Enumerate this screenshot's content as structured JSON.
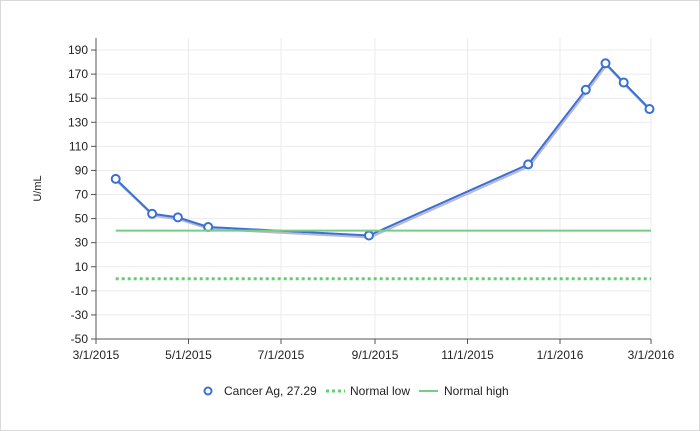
{
  "chart_data": {
    "type": "line",
    "ylabel": "U/mL",
    "xlabel": "",
    "ylim": [
      -50,
      200
    ],
    "yticks": [
      190,
      170,
      150,
      130,
      110,
      90,
      70,
      50,
      30,
      10,
      -10,
      -30,
      -50
    ],
    "xticks": [
      {
        "date": "2015-03-01",
        "label": "3/1/2015"
      },
      {
        "date": "2015-05-01",
        "label": "5/1/2015"
      },
      {
        "date": "2015-07-01",
        "label": "7/1/2015"
      },
      {
        "date": "2015-09-01",
        "label": "9/1/2015"
      },
      {
        "date": "2015-11-01",
        "label": "11/1/2015"
      },
      {
        "date": "2016-01-01",
        "label": "1/1/2016"
      },
      {
        "date": "2016-03-01",
        "label": "3/1/2016"
      }
    ],
    "xlim": [
      "2015-03-01",
      "2016-03-01"
    ],
    "grid": true,
    "legend_position": "bottom",
    "series": [
      {
        "name": "Cancer Ag, 27.29",
        "style": "line-markers",
        "color": "#3a6fd8",
        "points": [
          {
            "x": "2015-03-14",
            "y": 83
          },
          {
            "x": "2015-04-07",
            "y": 54
          },
          {
            "x": "2015-04-24",
            "y": 51
          },
          {
            "x": "2015-05-14",
            "y": 43
          },
          {
            "x": "2015-08-28",
            "y": 36
          },
          {
            "x": "2015-12-11",
            "y": 95
          },
          {
            "x": "2016-01-18",
            "y": 157
          },
          {
            "x": "2016-01-31",
            "y": 179
          },
          {
            "x": "2016-02-12",
            "y": 163
          },
          {
            "x": "2016-02-29",
            "y": 141
          }
        ]
      },
      {
        "name": "Normal low",
        "style": "dotted",
        "color": "#66cc77",
        "points": [
          {
            "x": "2015-03-14",
            "y": 0
          },
          {
            "x": "2016-03-01",
            "y": 0
          }
        ]
      },
      {
        "name": "Normal high",
        "style": "solid",
        "color": "#77cc88",
        "points": [
          {
            "x": "2015-03-14",
            "y": 40
          },
          {
            "x": "2016-03-01",
            "y": 40
          }
        ]
      }
    ]
  }
}
